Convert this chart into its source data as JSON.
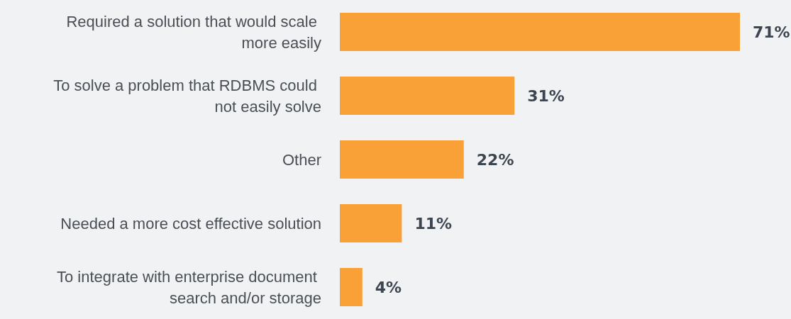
{
  "chart_data": {
    "type": "bar",
    "orientation": "horizontal",
    "categories": [
      "Required a solution that would scale more easily",
      "To solve a problem that RDBMS could not easily solve",
      "Other",
      "Needed a more cost effective solution",
      "To integrate with enterprise document search and/or storage"
    ],
    "values": [
      71,
      31,
      22,
      11,
      4
    ],
    "color": "#f9a036",
    "value_labels": [
      "71%",
      "31%",
      "22%",
      "11%",
      "4%"
    ]
  }
}
